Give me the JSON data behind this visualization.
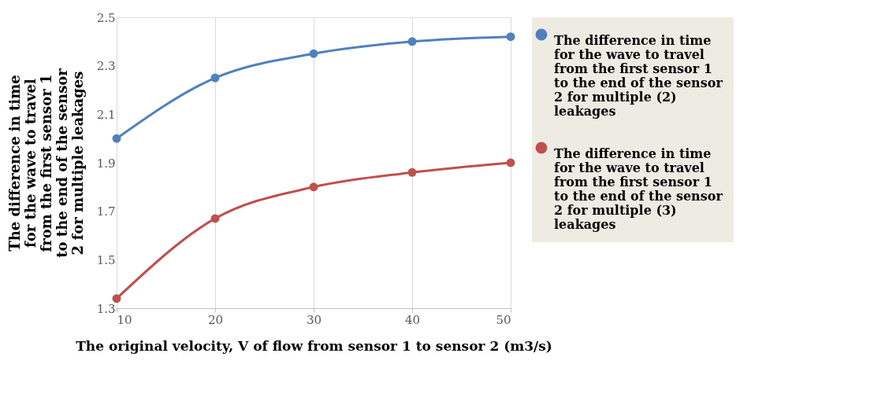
{
  "chart_data": {
    "type": "line",
    "xlabel": "The original velocity, V of flow from sensor 1 to sensor 2 (m3/s)",
    "ylabel": "The difference in time for the wave to travel from the first sensor 1 to the end of the sensor 2 for multiple leakages",
    "x": [
      10,
      20,
      30,
      40,
      50
    ],
    "series": [
      {
        "name": "The difference in time for the wave to travel from the first sensor 1 to the end of the sensor 2 for multiple (2) leakages",
        "color": "#4f81bd",
        "values": [
          2.0,
          2.25,
          2.35,
          2.4,
          2.42
        ]
      },
      {
        "name": "The difference in time for the wave to travel from the first sensor 1 to the end of the sensor 2  for multiple (3) leakages",
        "color": "#c0504d",
        "values": [
          1.34,
          1.67,
          1.8,
          1.86,
          1.9
        ]
      }
    ],
    "xlim": [
      10,
      50
    ],
    "xticks": [
      10,
      20,
      30,
      40,
      50
    ],
    "ylim": [
      1.3,
      2.5
    ],
    "yticks": [
      1.3,
      1.5,
      1.7,
      1.9,
      2.1,
      2.3,
      2.5
    ],
    "grid": "x",
    "legend": "right",
    "marker": "circle",
    "line_style": "solid"
  }
}
